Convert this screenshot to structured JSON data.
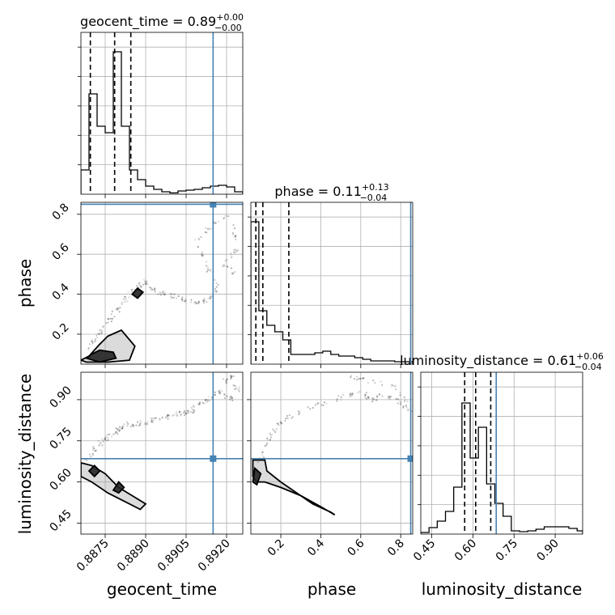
{
  "chart_data": {
    "type": "corner",
    "parameters": [
      "geocent_time",
      "phase",
      "luminosity_distance"
    ],
    "truth": {
      "geocent_time": 0.8915,
      "phase": 0.85,
      "luminosity_distance": 0.685
    },
    "truth_color": "#4682b4",
    "axis_labels": {
      "geocent_time": "geocent_time",
      "phase": "phase",
      "luminosity_distance": "luminosity_distance"
    },
    "ranges": {
      "geocent_time": [
        0.8866,
        0.8926
      ],
      "phase": [
        0.05,
        0.86
      ],
      "luminosity_distance": [
        0.41,
        1.0
      ]
    },
    "ticks": {
      "geocent_time": {
        "values": [
          0.8875,
          0.889,
          0.8905,
          0.892
        ],
        "labels": [
          "0.8875",
          "0.8890",
          "0.8905",
          "0.8920"
        ]
      },
      "phase": {
        "values": [
          0.2,
          0.4,
          0.6,
          0.8
        ],
        "labels": [
          "0.2",
          "0.4",
          "0.6",
          "0.8"
        ]
      },
      "luminosity_distance": {
        "values": [
          0.45,
          0.6,
          0.75,
          0.9
        ],
        "labels": [
          "0.45",
          "0.60",
          "0.75",
          "0.90"
        ]
      }
    },
    "titles": [
      {
        "param": "geocent_time",
        "name": "geocent_time",
        "median": "0.89",
        "plus": "+0.00",
        "minus": "−0.00"
      },
      {
        "param": "phase",
        "name": "phase",
        "median": "0.11",
        "plus": "+0.13",
        "minus": "−0.04"
      },
      {
        "param": "luminosity_distance",
        "name": "luminosity_distance",
        "median": "0.61",
        "plus": "+0.06",
        "minus": "−0.04"
      }
    ],
    "quantiles": {
      "geocent_time": [
        0.88695,
        0.88785,
        0.88845
      ],
      "phase": [
        0.075,
        0.11,
        0.24
      ],
      "luminosity_distance": [
        0.57,
        0.61,
        0.665
      ]
    },
    "histograms": {
      "geocent_time": {
        "bins": [
          0.8866,
          0.8869,
          0.8872,
          0.8875,
          0.8878,
          0.8881,
          0.8884,
          0.8887,
          0.889,
          0.8893,
          0.8896,
          0.8899,
          0.8902,
          0.8905,
          0.8908,
          0.8911,
          0.8914,
          0.8917,
          0.892,
          0.8923,
          0.8926
        ],
        "counts": [
          0.15,
          0.62,
          0.42,
          0.38,
          0.88,
          0.42,
          0.15,
          0.09,
          0.05,
          0.03,
          0.015,
          0.008,
          0.02,
          0.025,
          0.03,
          0.04,
          0.05,
          0.055,
          0.045,
          0.015
        ]
      },
      "phase": {
        "bins": [
          0.05,
          0.09,
          0.13,
          0.17,
          0.21,
          0.25,
          0.29,
          0.33,
          0.37,
          0.41,
          0.45,
          0.49,
          0.53,
          0.57,
          0.61,
          0.65,
          0.69,
          0.73,
          0.77,
          0.81,
          0.86
        ],
        "counts": [
          0.88,
          0.33,
          0.24,
          0.2,
          0.15,
          0.06,
          0.06,
          0.06,
          0.07,
          0.08,
          0.06,
          0.05,
          0.05,
          0.04,
          0.03,
          0.02,
          0.02,
          0.02,
          0.015,
          0.015
        ]
      },
      "luminosity_distance": {
        "bins": [
          0.41,
          0.44,
          0.47,
          0.5,
          0.53,
          0.56,
          0.59,
          0.62,
          0.65,
          0.68,
          0.71,
          0.74,
          0.77,
          0.8,
          0.83,
          0.86,
          0.89,
          0.92,
          0.95,
          0.98,
          1.0
        ],
        "counts": [
          0.01,
          0.04,
          0.08,
          0.14,
          0.29,
          0.81,
          0.47,
          0.66,
          0.31,
          0.19,
          0.11,
          0.02,
          0.015,
          0.02,
          0.03,
          0.045,
          0.045,
          0.045,
          0.035,
          0.02
        ]
      }
    },
    "pairs": [
      {
        "x": "geocent_time",
        "y": "phase",
        "scatter_path": [
          [
            0.8868,
            0.12
          ],
          [
            0.8871,
            0.17
          ],
          [
            0.8874,
            0.22
          ],
          [
            0.8877,
            0.28
          ],
          [
            0.888,
            0.33
          ],
          [
            0.8884,
            0.4
          ],
          [
            0.8887,
            0.43
          ],
          [
            0.889,
            0.47
          ],
          [
            0.8893,
            0.42
          ],
          [
            0.8897,
            0.4
          ],
          [
            0.8901,
            0.39
          ],
          [
            0.8905,
            0.37
          ],
          [
            0.891,
            0.36
          ],
          [
            0.8914,
            0.38
          ],
          [
            0.8917,
            0.45
          ],
          [
            0.8912,
            0.55
          ],
          [
            0.8909,
            0.67
          ],
          [
            0.8915,
            0.75
          ],
          [
            0.8921,
            0.8
          ],
          [
            0.8924,
            0.62
          ],
          [
            0.8919,
            0.55
          ],
          [
            0.8923,
            0.5
          ]
        ],
        "contours": [
          [
            [
              0.8866,
              0.07
            ],
            [
              0.8869,
              0.09
            ],
            [
              0.8873,
              0.15
            ],
            [
              0.8876,
              0.19
            ],
            [
              0.8881,
              0.22
            ],
            [
              0.8886,
              0.14
            ],
            [
              0.8884,
              0.07
            ],
            [
              0.8876,
              0.06
            ],
            [
              0.8868,
              0.06
            ]
          ],
          [
            [
              0.8868,
              0.08
            ],
            [
              0.887,
              0.1
            ],
            [
              0.8873,
              0.12
            ],
            [
              0.8878,
              0.11
            ],
            [
              0.8879,
              0.08
            ],
            [
              0.8873,
              0.06
            ]
          ],
          [
            [
              0.8885,
              0.4
            ],
            [
              0.8887,
              0.43
            ],
            [
              0.8889,
              0.41
            ],
            [
              0.8887,
              0.38
            ]
          ]
        ]
      },
      {
        "x": "geocent_time",
        "y": "luminosity_distance",
        "scatter_path": [
          [
            0.8868,
            0.67
          ],
          [
            0.8871,
            0.72
          ],
          [
            0.8874,
            0.75
          ],
          [
            0.8877,
            0.77
          ],
          [
            0.888,
            0.79
          ],
          [
            0.8883,
            0.81
          ],
          [
            0.8887,
            0.81
          ],
          [
            0.8891,
            0.82
          ],
          [
            0.8895,
            0.83
          ],
          [
            0.8899,
            0.84
          ],
          [
            0.8903,
            0.85
          ],
          [
            0.8907,
            0.86
          ],
          [
            0.891,
            0.88
          ],
          [
            0.8913,
            0.9
          ],
          [
            0.8917,
            0.93
          ],
          [
            0.8921,
            0.9
          ],
          [
            0.8925,
            0.94
          ],
          [
            0.8919,
            0.97
          ],
          [
            0.8922,
            0.98
          ]
        ],
        "contours": [
          [
            [
              0.8866,
              0.67
            ],
            [
              0.887,
              0.66
            ],
            [
              0.8875,
              0.63
            ],
            [
              0.888,
              0.58
            ],
            [
              0.8885,
              0.55
            ],
            [
              0.889,
              0.52
            ],
            [
              0.8888,
              0.5
            ],
            [
              0.8882,
              0.53
            ],
            [
              0.8876,
              0.56
            ],
            [
              0.887,
              0.6
            ],
            [
              0.8866,
              0.62
            ]
          ],
          [
            [
              0.8869,
              0.64
            ],
            [
              0.8871,
              0.66
            ],
            [
              0.8873,
              0.64
            ],
            [
              0.8871,
              0.62
            ]
          ],
          [
            [
              0.8878,
              0.57
            ],
            [
              0.888,
              0.6
            ],
            [
              0.8882,
              0.58
            ],
            [
              0.888,
              0.56
            ]
          ]
        ]
      },
      {
        "x": "phase",
        "y": "luminosity_distance",
        "scatter_path": [
          [
            0.09,
            0.67
          ],
          [
            0.12,
            0.72
          ],
          [
            0.15,
            0.78
          ],
          [
            0.2,
            0.82
          ],
          [
            0.28,
            0.85
          ],
          [
            0.38,
            0.88
          ],
          [
            0.52,
            0.91
          ],
          [
            0.6,
            0.93
          ],
          [
            0.66,
            0.9
          ],
          [
            0.72,
            0.92
          ],
          [
            0.8,
            0.89
          ],
          [
            0.85,
            0.86
          ],
          [
            0.78,
            0.95
          ],
          [
            0.62,
            0.97
          ],
          [
            0.55,
            0.99
          ]
        ],
        "contours": [
          [
            [
              0.06,
              0.68
            ],
            [
              0.12,
              0.68
            ],
            [
              0.13,
              0.64
            ],
            [
              0.2,
              0.6
            ],
            [
              0.28,
              0.56
            ],
            [
              0.36,
              0.52
            ],
            [
              0.45,
              0.49
            ],
            [
              0.47,
              0.48
            ],
            [
              0.4,
              0.51
            ],
            [
              0.3,
              0.55
            ],
            [
              0.2,
              0.58
            ],
            [
              0.12,
              0.6
            ],
            [
              0.08,
              0.6
            ],
            [
              0.06,
              0.62
            ]
          ],
          [
            [
              0.06,
              0.6
            ],
            [
              0.07,
              0.65
            ],
            [
              0.1,
              0.63
            ],
            [
              0.08,
              0.59
            ]
          ]
        ]
      }
    ]
  }
}
